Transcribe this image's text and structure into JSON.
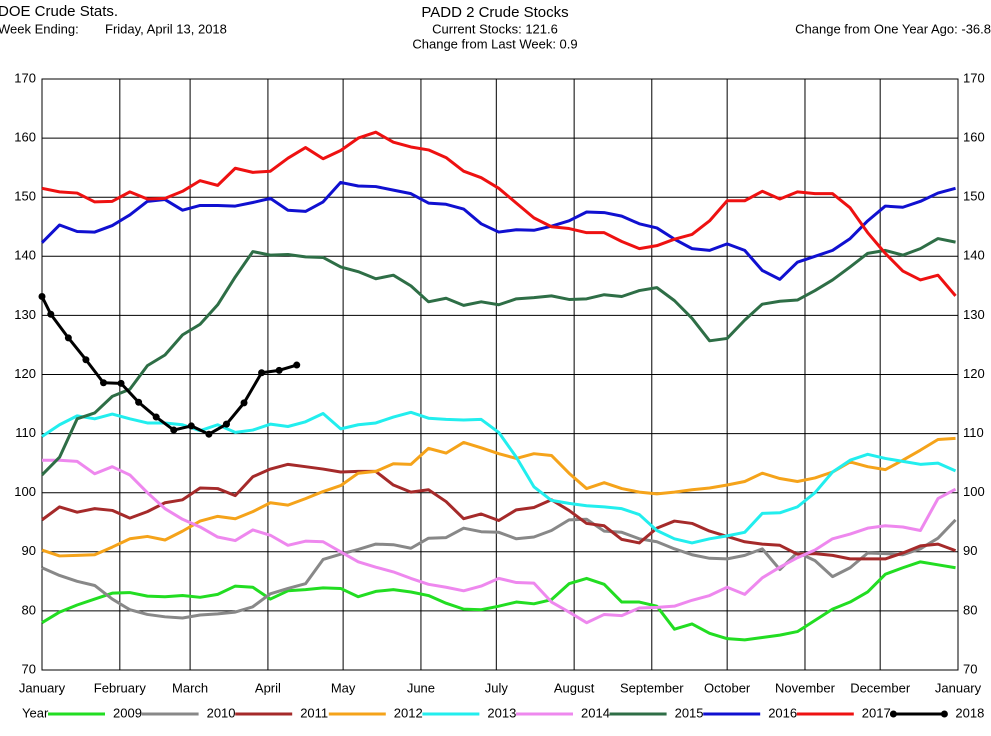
{
  "header": {
    "source": "DOE Crude Stats.",
    "week_label": "Week Ending:",
    "week_value": "Friday, April 13, 2018",
    "current": "Current Stocks: 121.6",
    "change_week": "Change from Last Week:  0.9",
    "change_year": "Change from One Year Ago: -36.8"
  },
  "chart_data": {
    "type": "line",
    "title": "PADD 2 Crude Stocks",
    "legend_title": "Year",
    "legend": "bottom",
    "grid": true,
    "x": [
      0,
      1,
      2,
      3,
      4,
      5,
      6,
      7,
      8,
      9,
      10,
      11,
      12,
      13,
      14,
      15,
      16,
      17,
      18,
      19,
      20,
      21,
      22,
      23,
      24,
      25,
      26,
      27,
      28,
      29,
      30,
      31,
      32,
      33,
      34,
      35,
      36,
      37,
      38,
      39,
      40,
      41,
      42,
      43,
      44,
      45,
      46,
      47,
      48,
      49,
      50,
      51,
      52
    ],
    "xlim": [
      0,
      52.14
    ],
    "xticks": [
      {
        "value": 0,
        "label": "January"
      },
      {
        "value": 4.43,
        "label": "February"
      },
      {
        "value": 8.43,
        "label": "March"
      },
      {
        "value": 12.86,
        "label": "April"
      },
      {
        "value": 17.14,
        "label": "May"
      },
      {
        "value": 21.57,
        "label": "June"
      },
      {
        "value": 25.86,
        "label": "July"
      },
      {
        "value": 30.29,
        "label": "August"
      },
      {
        "value": 34.71,
        "label": "September"
      },
      {
        "value": 39,
        "label": "October"
      },
      {
        "value": 43.43,
        "label": "November"
      },
      {
        "value": 47.71,
        "label": "December"
      },
      {
        "value": 52.14,
        "label": "January"
      }
    ],
    "ylim": [
      70,
      170
    ],
    "yticks": [
      70,
      80,
      90,
      100,
      110,
      120,
      130,
      140,
      150,
      160,
      170
    ],
    "series": [
      {
        "name": "2009",
        "color": "#22dd22",
        "values": [
          78,
          79.8,
          81,
          82,
          83,
          83.1,
          82.5,
          82.4,
          82.6,
          82.3,
          82.8,
          84.2,
          84,
          82,
          83.4,
          83.6,
          83.9,
          83.8,
          82.4,
          83.3,
          83.6,
          83.2,
          82.6,
          81.3,
          80.3,
          80.2,
          80.8,
          81.5,
          81.2,
          81.9,
          84.6,
          85.5,
          84.5,
          81.5,
          81.5,
          80.8,
          76.9,
          77.8,
          76.2,
          75.3,
          75.1,
          75.5,
          75.9,
          76.5,
          78.4,
          80.3,
          81.5,
          83.2,
          86.2,
          87.3,
          88.3,
          87.8,
          87.3
        ]
      },
      {
        "name": "2010",
        "color": "#888888",
        "values": [
          87.3,
          86,
          85,
          84.3,
          82,
          80.2,
          79.4,
          79,
          78.8,
          79.3,
          79.5,
          79.8,
          80.7,
          82.9,
          83.8,
          84.6,
          88.7,
          89.6,
          90.4,
          91.3,
          91.2,
          90.6,
          92.3,
          92.4,
          94,
          93.4,
          93.3,
          92.2,
          92.5,
          93.6,
          95.4,
          95.5,
          93.5,
          93.3,
          92.2,
          91.7,
          90.5,
          89.5,
          88.9,
          88.8,
          89.4,
          90.5,
          87,
          89.9,
          88.5,
          85.8,
          87.3,
          89.8,
          89.7,
          89.5,
          90.5,
          92.3,
          95.4
        ]
      },
      {
        "name": "2011",
        "color": "#a52a2a",
        "values": [
          95.4,
          97.6,
          96.7,
          97.3,
          97,
          95.7,
          96.8,
          98.3,
          98.8,
          100.8,
          100.7,
          99.5,
          102.7,
          104,
          104.8,
          104.4,
          104,
          103.5,
          103.6,
          103.6,
          101.3,
          100.1,
          100.5,
          98.5,
          95.6,
          96.4,
          95.3,
          97.1,
          97.5,
          98.8,
          97,
          94.8,
          94.4,
          92.1,
          91.5,
          94,
          95.2,
          94.8,
          93.5,
          92.6,
          91.7,
          91.3,
          91.1,
          89.6,
          89.7,
          89.4,
          88.8,
          88.8,
          88.8,
          89.8,
          91,
          91.3,
          90.2
        ]
      },
      {
        "name": "2012",
        "color": "#f5a31a",
        "values": [
          90.3,
          89.3,
          89.4,
          89.5,
          90.8,
          92.2,
          92.6,
          92,
          93.5,
          95.2,
          96,
          95.6,
          96.8,
          98.3,
          97.9,
          99,
          100.2,
          101.2,
          103.3,
          103.6,
          104.9,
          104.8,
          107.5,
          106.7,
          108.5,
          107.6,
          106.6,
          105.8,
          106.6,
          106.3,
          103.3,
          100.7,
          101.7,
          100.7,
          100.1,
          99.8,
          100.1,
          100.5,
          100.8,
          101.3,
          101.9,
          103.3,
          102.4,
          101.9,
          102.5,
          103.5,
          105.2,
          104.4,
          103.9,
          105.5,
          107.2,
          109,
          109.2
        ]
      },
      {
        "name": "2013",
        "color": "#22eeee",
        "values": [
          109.5,
          111.5,
          113,
          112.5,
          113.3,
          112.5,
          111.8,
          111.8,
          111.5,
          110.5,
          111.5,
          110.2,
          110.6,
          111.6,
          111.2,
          112,
          113.4,
          110.8,
          111.5,
          111.8,
          112.8,
          113.6,
          112.6,
          112.4,
          112.3,
          112.4,
          110.2,
          106,
          101,
          98.7,
          98.2,
          97.8,
          97.6,
          97.3,
          96.3,
          93.6,
          92.2,
          91.5,
          92.2,
          92.7,
          93.3,
          96.5,
          96.6,
          97.6,
          100,
          103.5,
          105.5,
          106.5,
          105.8,
          105.3,
          104.8,
          105,
          103.7
        ]
      },
      {
        "name": "2014",
        "color": "#ee88ee",
        "values": [
          105.5,
          105.5,
          105.3,
          103.2,
          104.4,
          103,
          100,
          97.3,
          95.5,
          94.2,
          92.5,
          91.9,
          93.7,
          92.8,
          91.1,
          91.8,
          91.7,
          90,
          88.3,
          87.4,
          86.6,
          85.5,
          84.5,
          84,
          83.4,
          84.2,
          85.5,
          84.8,
          84.7,
          81.5,
          79.8,
          78,
          79.4,
          79.2,
          80.5,
          80.6,
          80.8,
          81.8,
          82.6,
          84,
          82.8,
          85.6,
          87.4,
          89,
          90.3,
          92.2,
          93,
          94,
          94.4,
          94.2,
          93.6,
          99,
          100.6
        ]
      },
      {
        "name": "2015",
        "color": "#2e6e46",
        "values": [
          103,
          106,
          112.5,
          113.5,
          116.3,
          117.5,
          121.5,
          123.3,
          126.7,
          128.5,
          131.8,
          136.5,
          140.8,
          140.2,
          140.3,
          139.9,
          139.8,
          138.2,
          137.4,
          136.2,
          136.8,
          135,
          132.3,
          132.9,
          131.7,
          132.3,
          131.8,
          132.8,
          133,
          133.3,
          132.7,
          132.8,
          133.5,
          133.2,
          134.2,
          134.7,
          132.5,
          129.5,
          125.7,
          126.1,
          129.2,
          131.9,
          132.4,
          132.6,
          134.2,
          136,
          138.2,
          140.5,
          141,
          140.2,
          141.3,
          143,
          142.4
        ]
      },
      {
        "name": "2016",
        "color": "#1010d0",
        "values": [
          142.3,
          145.3,
          144.2,
          144.1,
          145.2,
          147,
          149.3,
          149.6,
          147.8,
          148.6,
          148.6,
          148.5,
          149.1,
          149.8,
          147.8,
          147.6,
          149.2,
          152.5,
          151.9,
          151.8,
          151.2,
          150.6,
          149,
          148.8,
          148,
          145.5,
          144.1,
          144.5,
          144.4,
          145.1,
          146,
          147.5,
          147.4,
          146.8,
          145.5,
          144.8,
          142.9,
          141.3,
          141,
          142.1,
          141,
          137.6,
          136.1,
          139,
          140,
          141,
          143,
          146,
          148.5,
          148.3,
          149.3,
          150.7,
          151.5
        ]
      },
      {
        "name": "2017",
        "color": "#ee1111",
        "values": [
          151.5,
          150.9,
          150.7,
          149.2,
          149.3,
          150.9,
          149.7,
          149.8,
          151,
          152.8,
          152,
          154.9,
          154.2,
          154.4,
          156.6,
          158.4,
          156.5,
          157.9,
          160,
          161,
          159.3,
          158.5,
          158,
          156.7,
          154.4,
          153.3,
          151.5,
          149,
          146.5,
          145,
          144.7,
          144,
          144,
          142.5,
          141.3,
          141.8,
          142.9,
          143.7,
          146,
          149.4,
          149.4,
          151,
          149.7,
          150.9,
          150.6,
          150.6,
          148.2,
          144,
          140.5,
          137.5,
          136,
          136.8,
          133.3
        ]
      },
      {
        "name": "2018",
        "color": "#000000",
        "marker": true,
        "x": [
          0,
          0.5,
          1.5,
          2.5,
          3.5,
          4.5,
          5.5,
          6.5,
          7.5,
          8.5,
          9.5,
          10.5,
          11.5,
          12.5,
          13.5,
          14.5
        ],
        "values": [
          133.2,
          130.2,
          126.2,
          122.5,
          118.6,
          118.5,
          115.3,
          112.8,
          110.6,
          111.3,
          109.9,
          111.6,
          115.2,
          120.3,
          120.7,
          121.6
        ]
      }
    ]
  }
}
